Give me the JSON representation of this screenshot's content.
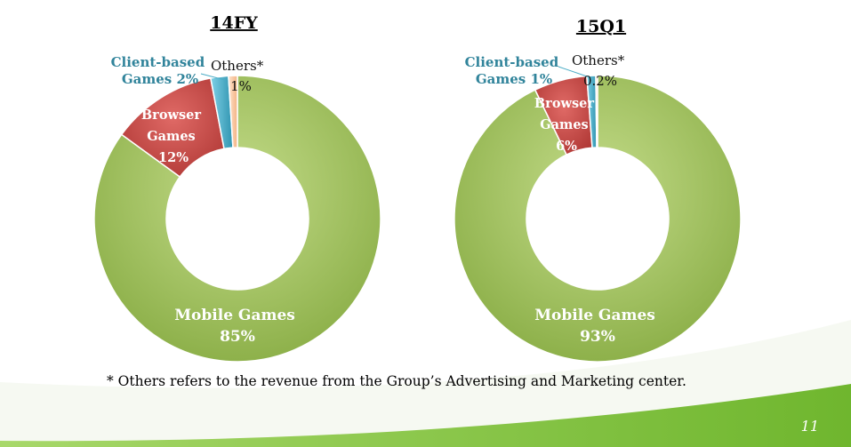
{
  "slide": {
    "footnote": "* Others refers to the revenue from the Group’s Advertising and Marketing center.",
    "page_number": "11"
  },
  "colors": {
    "mobile": "#9bbb59",
    "browser": "#c0504d",
    "client": "#4bacc6",
    "others": "#fac090",
    "footer_green": "#8cc63e"
  },
  "chart_data": [
    {
      "type": "pie",
      "title": "14FY",
      "categories": [
        "Mobile Games",
        "Browser Games",
        "Client-based Games",
        "Others*"
      ],
      "values": [
        85,
        12,
        2,
        1
      ],
      "labels": {
        "mobile": [
          "Mobile Games",
          "85%"
        ],
        "browser": [
          "Browser",
          "Games",
          "12%"
        ],
        "client": [
          "Client-based",
          "Games 2%"
        ],
        "others": [
          "Others*",
          "1%"
        ]
      }
    },
    {
      "type": "pie",
      "title": "15Q1",
      "categories": [
        "Mobile Games",
        "Browser Games",
        "Client-based Games",
        "Others*"
      ],
      "values": [
        93,
        6,
        1,
        0.2
      ],
      "labels": {
        "mobile": [
          "Mobile Games",
          "93%"
        ],
        "browser": [
          "Browser",
          "Games",
          "6%"
        ],
        "client": [
          "Client-based",
          "Games 1%"
        ],
        "others": [
          "Others*",
          "0.2%"
        ]
      }
    }
  ]
}
